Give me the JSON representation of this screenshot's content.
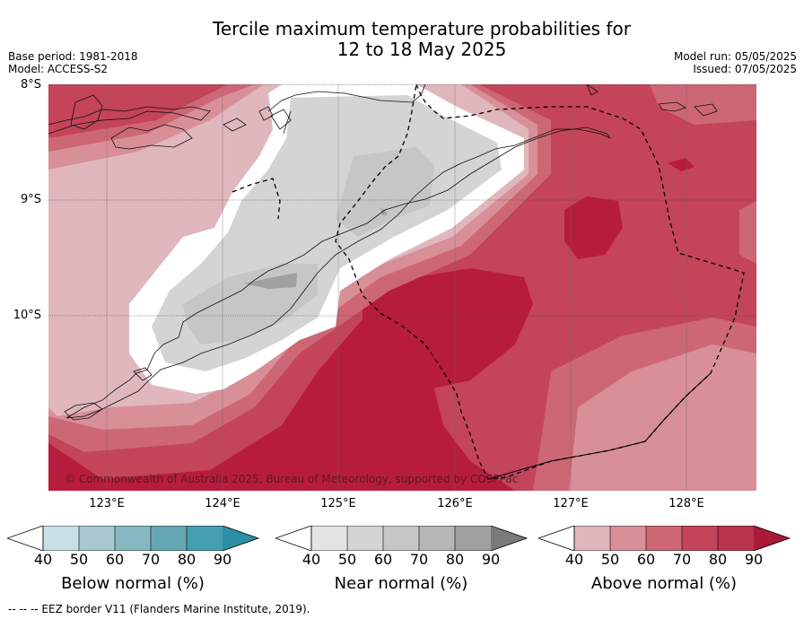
{
  "title": {
    "line1": "Tercile maximum temperature probabilities for",
    "line2": "12 to 18 May 2025"
  },
  "meta": {
    "base_period": "Base period: 1981-2018",
    "model": "Model: ACCESS-S2",
    "model_run": "Model run: 05/05/2025",
    "issued": "Issued: 07/05/2025"
  },
  "map": {
    "lat_labels": [
      "8°S",
      "9°S",
      "10°S"
    ],
    "lon_labels": [
      "123°E",
      "124°E",
      "125°E",
      "126°E",
      "127°E",
      "128°E"
    ],
    "copyright": "© Commonwealth of Australia 2025, Bureau of Meteorology, supported by COSPPac",
    "colors": {
      "above_40": "#ffffff",
      "above_50": "#e0b7bd",
      "above_60": "#d88f98",
      "above_70": "#cd6776",
      "above_80": "#c4445a",
      "above_90": "#b81c3c",
      "near_50": "#d4d4d4",
      "near_60": "#c6c6c6",
      "near_70": "#a0a0a0"
    }
  },
  "legends": [
    {
      "label": "Below normal (%)",
      "ticks": [
        "40",
        "50",
        "60",
        "70",
        "80",
        "90"
      ],
      "colors": [
        "#ffffff",
        "#c6e0e6",
        "#a6c8ce",
        "#86b8c2",
        "#65a6b3",
        "#44a0b0",
        "#2c8fa4"
      ]
    },
    {
      "label": "Near normal (%)",
      "ticks": [
        "40",
        "50",
        "60",
        "70",
        "80",
        "90"
      ],
      "colors": [
        "#ffffff",
        "#e4e4e4",
        "#d4d4d4",
        "#c6c6c6",
        "#b6b6b6",
        "#a0a0a0",
        "#7a7a7a"
      ]
    },
    {
      "label": "Above normal (%)",
      "ticks": [
        "40",
        "50",
        "60",
        "70",
        "80",
        "90"
      ],
      "colors": [
        "#ffffff",
        "#e0b7bd",
        "#d88f98",
        "#cd6776",
        "#c4445a",
        "#b8344e",
        "#a81a36"
      ]
    }
  ],
  "footer": "--  --  -- EEZ border V11 (Flanders Marine Institute, 2019)."
}
